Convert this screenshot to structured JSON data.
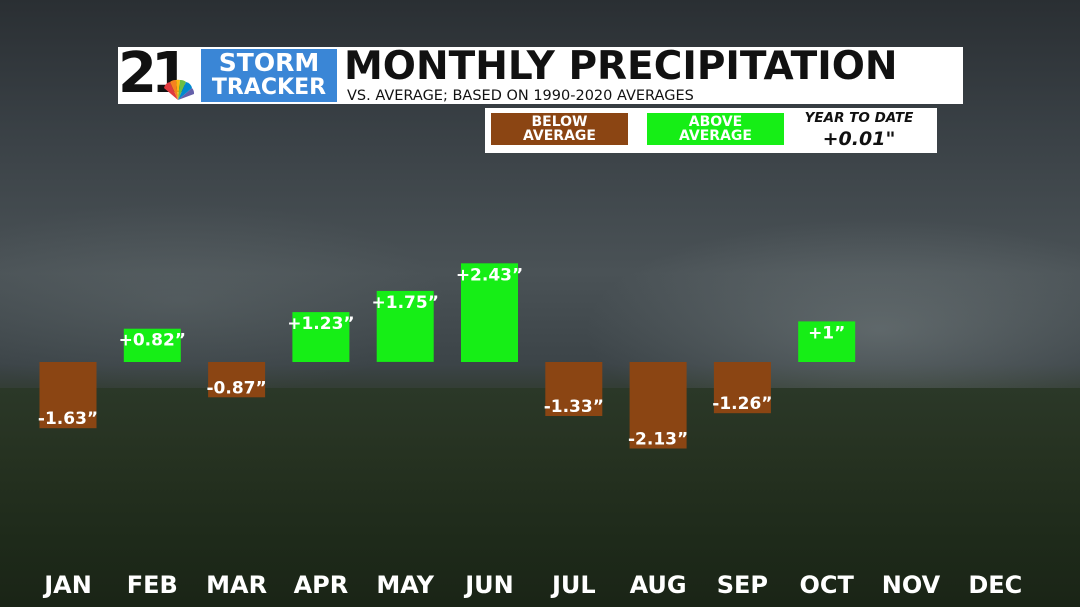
{
  "branding": {
    "station_number": "21",
    "storm_line1": "STORM",
    "storm_line2": "TRACKER",
    "peacock_icon": "nbc-peacock-icon"
  },
  "header": {
    "title": "MONTHLY PRECIPITATION",
    "subtitle": "VS. AVERAGE; BASED ON 1990-2020 AVERAGES"
  },
  "legend": {
    "below": {
      "line1": "BELOW",
      "line2": "AVERAGE",
      "color": "#8b4513"
    },
    "above": {
      "line1": "ABOVE",
      "line2": "AVERAGE",
      "color": "#16ee16"
    },
    "ytd_label": "YEAR TO DATE",
    "ytd_value": "+0.01\""
  },
  "chart_data": {
    "type": "bar",
    "categories": [
      "JAN",
      "FEB",
      "MAR",
      "APR",
      "MAY",
      "JUN",
      "JUL",
      "AUG",
      "SEP",
      "OCT",
      "NOV",
      "DEC"
    ],
    "values": [
      -1.63,
      0.82,
      -0.87,
      1.23,
      1.75,
      2.43,
      -1.33,
      -2.13,
      -1.26,
      1,
      null,
      null
    ],
    "labels": [
      "-1.63”",
      "+0.82”",
      "-0.87”",
      "+1.23”",
      "+1.75”",
      "+2.43”",
      "-1.33”",
      "-2.13”",
      "-1.26”",
      "+1”",
      "",
      ""
    ],
    "colors": {
      "positive": "#16ee16",
      "negative": "#8b4513"
    },
    "ylim": [
      -2.13,
      2.43
    ],
    "baseline": 0,
    "grid": false
  }
}
